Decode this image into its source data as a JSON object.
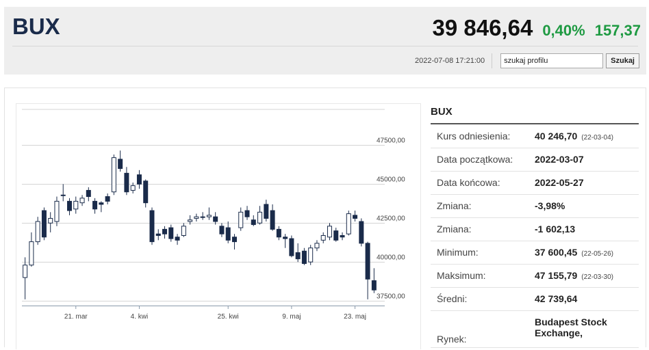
{
  "header": {
    "ticker": "BUX",
    "price": "39 846,64",
    "change_pct": "0,40%",
    "change_abs": "157,37",
    "timestamp": "2022-07-08 17:21:00",
    "search_placeholder": "szukaj profilu",
    "search_button": "Szukaj"
  },
  "info": {
    "title": "BUX",
    "rows": [
      {
        "label": "Kurs odniesienia:",
        "value": "40 246,70",
        "date": "(22-03-04)"
      },
      {
        "label": "Data początkowa:",
        "value": "2022-03-07",
        "date": ""
      },
      {
        "label": "Data końcowa:",
        "value": "2022-05-27",
        "date": ""
      },
      {
        "label": "Zmiana:",
        "value": "-3,98%",
        "date": ""
      },
      {
        "label": "Zmiana:",
        "value": "-1 602,13",
        "date": ""
      },
      {
        "label": "Minimum:",
        "value": "37 600,45",
        "date": "(22-05-26)"
      },
      {
        "label": "Maksimum:",
        "value": "47 155,79",
        "date": "(22-03-30)"
      },
      {
        "label": "Średni:",
        "value": "42 739,64",
        "date": ""
      },
      {
        "label": "Rynek:",
        "value": "Budapest Stock Exchange,",
        "date": ""
      }
    ]
  },
  "colors": {
    "up_fill": "#ffffff",
    "down_fill": "#1a2b4a",
    "candle_stroke": "#1a2b4a",
    "grid": "#d4d4d4",
    "accent_green": "#1e9a42"
  },
  "chart_data": {
    "type": "candlestick",
    "x_tick_labels": [
      "21. mar",
      "4. kwi",
      "25. kwi",
      "9. maj",
      "23. maj"
    ],
    "x_tick_index": [
      8,
      18,
      32,
      42,
      52
    ],
    "y_ticks": [
      37500,
      40000,
      42500,
      45000,
      47500
    ],
    "y_tick_labels": [
      "37500,00",
      "40000,00",
      "42500,00",
      "45000,00",
      "47500,00"
    ],
    "ylim": [
      37200,
      49800
    ],
    "grid": true,
    "candles": [
      {
        "o": 39000,
        "c": 39800,
        "h": 40300,
        "l": 37600
      },
      {
        "o": 39800,
        "c": 41300,
        "h": 41900,
        "l": 39700
      },
      {
        "o": 41300,
        "c": 42600,
        "h": 42900,
        "l": 41100
      },
      {
        "o": 43300,
        "c": 41600,
        "h": 43500,
        "l": 41400
      },
      {
        "o": 42500,
        "c": 42800,
        "h": 43200,
        "l": 41900
      },
      {
        "o": 42600,
        "c": 43900,
        "h": 44200,
        "l": 42300
      },
      {
        "o": 44300,
        "c": 44300,
        "h": 45000,
        "l": 43900
      },
      {
        "o": 43900,
        "c": 43300,
        "h": 44100,
        "l": 43000
      },
      {
        "o": 43400,
        "c": 43900,
        "h": 44200,
        "l": 43100
      },
      {
        "o": 43800,
        "c": 44100,
        "h": 44300,
        "l": 43600
      },
      {
        "o": 44600,
        "c": 44200,
        "h": 44800,
        "l": 43900
      },
      {
        "o": 43900,
        "c": 43400,
        "h": 44100,
        "l": 43100
      },
      {
        "o": 43800,
        "c": 43700,
        "h": 43900,
        "l": 43200
      },
      {
        "o": 44200,
        "c": 43900,
        "h": 44400,
        "l": 43700
      },
      {
        "o": 44500,
        "c": 46700,
        "h": 46900,
        "l": 44300
      },
      {
        "o": 46600,
        "c": 46000,
        "h": 47156,
        "l": 45800
      },
      {
        "o": 45700,
        "c": 44500,
        "h": 46100,
        "l": 44300
      },
      {
        "o": 44600,
        "c": 44900,
        "h": 45100,
        "l": 44400
      },
      {
        "o": 45600,
        "c": 45000,
        "h": 45900,
        "l": 44700
      },
      {
        "o": 45200,
        "c": 43800,
        "h": 45300,
        "l": 43500
      },
      {
        "o": 43300,
        "c": 41300,
        "h": 43500,
        "l": 41100
      },
      {
        "o": 41800,
        "c": 41700,
        "h": 42100,
        "l": 41400
      },
      {
        "o": 42100,
        "c": 41800,
        "h": 42300,
        "l": 41500
      },
      {
        "o": 42200,
        "c": 41500,
        "h": 42400,
        "l": 41300
      },
      {
        "o": 41600,
        "c": 41400,
        "h": 41800,
        "l": 41100
      },
      {
        "o": 41700,
        "c": 42300,
        "h": 42500,
        "l": 41600
      },
      {
        "o": 42600,
        "c": 42700,
        "h": 43000,
        "l": 42400
      },
      {
        "o": 42800,
        "c": 42900,
        "h": 43100,
        "l": 42600
      },
      {
        "o": 42900,
        "c": 42900,
        "h": 43200,
        "l": 42700
      },
      {
        "o": 42900,
        "c": 43000,
        "h": 43500,
        "l": 42700
      },
      {
        "o": 42900,
        "c": 42600,
        "h": 43200,
        "l": 42400
      },
      {
        "o": 42300,
        "c": 41800,
        "h": 42500,
        "l": 41600
      },
      {
        "o": 42200,
        "c": 41400,
        "h": 42600,
        "l": 41200
      },
      {
        "o": 41600,
        "c": 41300,
        "h": 41800,
        "l": 40800
      },
      {
        "o": 42200,
        "c": 43200,
        "h": 43500,
        "l": 42000
      },
      {
        "o": 43300,
        "c": 42900,
        "h": 43600,
        "l": 42700
      },
      {
        "o": 42700,
        "c": 42400,
        "h": 43000,
        "l": 42300
      },
      {
        "o": 42500,
        "c": 43200,
        "h": 43600,
        "l": 42400
      },
      {
        "o": 43700,
        "c": 42800,
        "h": 44000,
        "l": 42600
      },
      {
        "o": 43300,
        "c": 42100,
        "h": 43700,
        "l": 42000
      },
      {
        "o": 42100,
        "c": 41600,
        "h": 42300,
        "l": 41400
      },
      {
        "o": 41600,
        "c": 41500,
        "h": 41800,
        "l": 40900
      },
      {
        "o": 41500,
        "c": 40400,
        "h": 41700,
        "l": 40300
      },
      {
        "o": 40600,
        "c": 40200,
        "h": 41200,
        "l": 40000
      },
      {
        "o": 40700,
        "c": 39900,
        "h": 40900,
        "l": 39800
      },
      {
        "o": 40000,
        "c": 40900,
        "h": 41100,
        "l": 39800
      },
      {
        "o": 40900,
        "c": 41200,
        "h": 41400,
        "l": 40700
      },
      {
        "o": 41400,
        "c": 41700,
        "h": 41900,
        "l": 41200
      },
      {
        "o": 41600,
        "c": 42300,
        "h": 42500,
        "l": 41400
      },
      {
        "o": 42000,
        "c": 41400,
        "h": 42200,
        "l": 41300
      },
      {
        "o": 41700,
        "c": 41600,
        "h": 41900,
        "l": 41400
      },
      {
        "o": 41800,
        "c": 43100,
        "h": 43300,
        "l": 41700
      },
      {
        "o": 43000,
        "c": 42800,
        "h": 43300,
        "l": 42600
      },
      {
        "o": 42600,
        "c": 41200,
        "h": 42800,
        "l": 41000
      },
      {
        "o": 41200,
        "c": 38900,
        "h": 41300,
        "l": 37600
      },
      {
        "o": 38800,
        "c": 38200,
        "h": 39600,
        "l": 38000
      }
    ]
  }
}
